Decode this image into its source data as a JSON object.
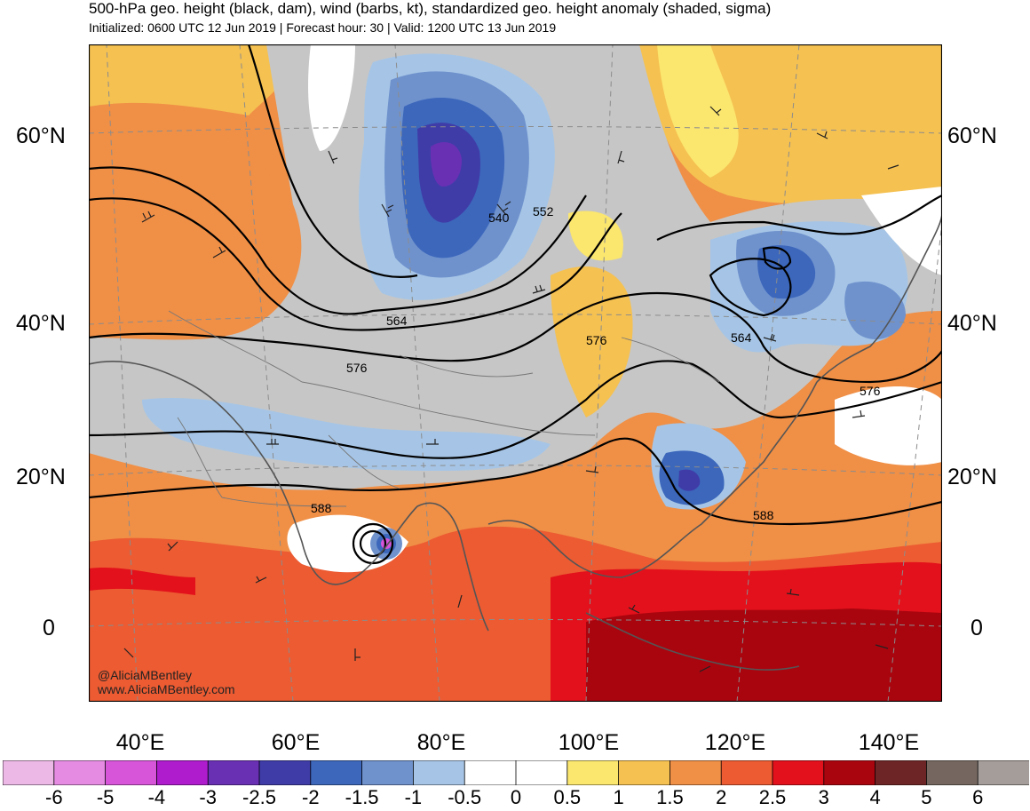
{
  "header": {
    "title": "500-hPa geo. height (black, dam), wind (barbs, kt), standardized geo. height anomaly (shaded, sigma)",
    "subtitle": "Initialized: 0600 UTC 12 Jun 2019 | Forecast hour: 30 | Valid: 1200 UTC 13 Jun 2019"
  },
  "axes": {
    "lat_labels": [
      "60°N",
      "40°N",
      "20°N",
      "0"
    ],
    "lon_labels": [
      "40°E",
      "60°E",
      "80°E",
      "100°E",
      "120°E",
      "140°E"
    ]
  },
  "contour_labels": [
    "540",
    "552",
    "564",
    "576",
    "564",
    "576",
    "588",
    "588"
  ],
  "credit": {
    "handle": "@AliciaMBentley",
    "site": "www.AliciaMBentley.com"
  },
  "colorbar": {
    "labels": [
      "-6",
      "-5",
      "-4",
      "-3",
      "-2.5",
      "-2",
      "-1.5",
      "-1",
      "-0.5",
      "0",
      "0.5",
      "1",
      "1.5",
      "2",
      "2.5",
      "3",
      "4",
      "5",
      "6"
    ],
    "colors": [
      "#ecb8e6",
      "#e58be2",
      "#d655d8",
      "#ae1ccd",
      "#6930b4",
      "#3f3ca8",
      "#3c67bb",
      "#6f92cd",
      "#a6c5e6",
      "#ffffff",
      "#ffffff",
      "#fbe66e",
      "#f5c151",
      "#f08f46",
      "#ec5b32",
      "#e3111b",
      "#a9050f",
      "#6e2526",
      "#75675f",
      "#a59d9a"
    ]
  },
  "map": {
    "anomaly_colors": {
      "gray": "#c6c6c6",
      "light_blue": "#a6c5e6",
      "mid_blue": "#6f92cd",
      "blue": "#3c67bb",
      "dark_blue": "#3f3ca8",
      "purple": "#6930b4",
      "white": "#ffffff",
      "yellow": "#fbe66e",
      "light_orange": "#f5c151",
      "orange": "#f08f46",
      "red_orange": "#ec5b32",
      "red": "#e3111b",
      "dark_red": "#a9050f"
    }
  }
}
